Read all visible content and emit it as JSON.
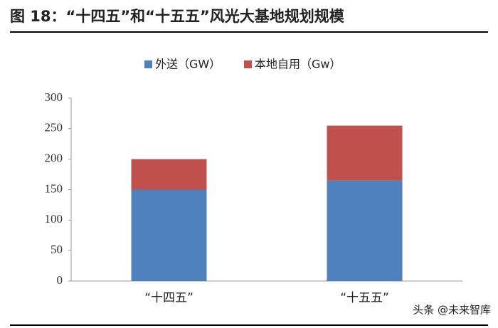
{
  "chart_data": {
    "type": "stacked_bar",
    "title": "图 18：“十四五”和“十五五”风光大基地规划规模",
    "categories": [
      "“十四五”",
      "“十五五”"
    ],
    "series": [
      {
        "name": "外送（GW）",
        "color": "#4f81bd",
        "values": [
          150,
          165
        ]
      },
      {
        "name": "本地自用（Gw）",
        "color": "#c0504d",
        "values": [
          50,
          90
        ]
      }
    ],
    "ylim": [
      0,
      300
    ],
    "yticks": [
      0,
      50,
      100,
      150,
      200,
      250,
      300
    ],
    "legend": "top",
    "watermark": "头条 @未来智库"
  }
}
